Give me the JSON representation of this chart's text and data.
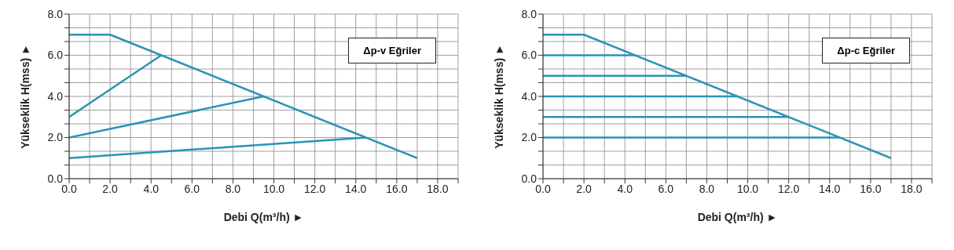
{
  "chart_data": [
    {
      "type": "line",
      "xlabel": "Debi Q(m³/h) ►",
      "ylabel": "Yükseklik H(mss) ►",
      "annotations": [
        "Δp-v Eğriler"
      ],
      "xlim": [
        0,
        19
      ],
      "ylim": [
        0,
        8
      ],
      "xticks": [
        {
          "value": 0,
          "label": "0.0"
        },
        {
          "value": 1,
          "label": null
        },
        {
          "value": 2,
          "label": "2.0"
        },
        {
          "value": 3,
          "label": null
        },
        {
          "value": 4,
          "label": "4.0"
        },
        {
          "value": 5,
          "label": null
        },
        {
          "value": 6,
          "label": "6.0"
        },
        {
          "value": 7,
          "label": null
        },
        {
          "value": 8,
          "label": "8.0"
        },
        {
          "value": 9,
          "label": null
        },
        {
          "value": 10,
          "label": "10.0"
        },
        {
          "value": 11,
          "label": null
        },
        {
          "value": 12,
          "label": "12.0"
        },
        {
          "value": 13,
          "label": null
        },
        {
          "value": 14,
          "label": "14.0"
        },
        {
          "value": 15,
          "label": null
        },
        {
          "value": 16,
          "label": "16.0"
        },
        {
          "value": 17,
          "label": null
        },
        {
          "value": 18,
          "label": "18.0"
        },
        {
          "value": 19,
          "label": null
        }
      ],
      "yticks": [
        {
          "value": 0,
          "label": "0.0"
        },
        {
          "value": 0.667,
          "label": null
        },
        {
          "value": 1.333,
          "label": null
        },
        {
          "value": 2,
          "label": "2.0"
        },
        {
          "value": 2.667,
          "label": null
        },
        {
          "value": 3.333,
          "label": null
        },
        {
          "value": 4,
          "label": "4.0"
        },
        {
          "value": 4.667,
          "label": null
        },
        {
          "value": 5.333,
          "label": null
        },
        {
          "value": 6,
          "label": "6.0"
        },
        {
          "value": 6.667,
          "label": null
        },
        {
          "value": 7.333,
          "label": null
        },
        {
          "value": 8,
          "label": "8.0"
        }
      ],
      "grid": true,
      "marker": "none",
      "line_style": "solid",
      "series": [
        {
          "color": "#2b93b3",
          "x": [
            0,
            2,
            17
          ],
          "values": [
            7,
            7,
            1
          ]
        },
        {
          "color": "#2b93b3",
          "x": [
            0,
            4.5
          ],
          "values": [
            3,
            6
          ]
        },
        {
          "color": "#2b93b3",
          "x": [
            0,
            9.5
          ],
          "values": [
            2,
            4
          ]
        },
        {
          "color": "#2b93b3",
          "x": [
            0,
            14.5
          ],
          "values": [
            1,
            2
          ]
        }
      ]
    },
    {
      "type": "line",
      "xlabel": "Debi Q(m³/h) ►",
      "ylabel": "Yükseklik H(mss) ►",
      "annotations": [
        "Δp-c Eğriler"
      ],
      "xlim": [
        0,
        19
      ],
      "ylim": [
        0,
        8
      ],
      "xticks": [
        {
          "value": 0,
          "label": "0.0"
        },
        {
          "value": 1,
          "label": null
        },
        {
          "value": 2,
          "label": "2.0"
        },
        {
          "value": 3,
          "label": null
        },
        {
          "value": 4,
          "label": "4.0"
        },
        {
          "value": 5,
          "label": null
        },
        {
          "value": 6,
          "label": "6.0"
        },
        {
          "value": 7,
          "label": null
        },
        {
          "value": 8,
          "label": "8.0"
        },
        {
          "value": 9,
          "label": null
        },
        {
          "value": 10,
          "label": "10.0"
        },
        {
          "value": 11,
          "label": null
        },
        {
          "value": 12,
          "label": "12.0"
        },
        {
          "value": 13,
          "label": null
        },
        {
          "value": 14,
          "label": "14.0"
        },
        {
          "value": 15,
          "label": null
        },
        {
          "value": 16,
          "label": "16.0"
        },
        {
          "value": 17,
          "label": null
        },
        {
          "value": 18,
          "label": "18.0"
        },
        {
          "value": 19,
          "label": null
        }
      ],
      "yticks": [
        {
          "value": 0,
          "label": "0.0"
        },
        {
          "value": 0.667,
          "label": null
        },
        {
          "value": 1.333,
          "label": null
        },
        {
          "value": 2,
          "label": "2.0"
        },
        {
          "value": 2.667,
          "label": null
        },
        {
          "value": 3.333,
          "label": null
        },
        {
          "value": 4,
          "label": "4.0"
        },
        {
          "value": 4.667,
          "label": null
        },
        {
          "value": 5.333,
          "label": null
        },
        {
          "value": 6,
          "label": "6.0"
        },
        {
          "value": 6.667,
          "label": null
        },
        {
          "value": 7.333,
          "label": null
        },
        {
          "value": 8,
          "label": "8.0"
        }
      ],
      "grid": true,
      "marker": "none",
      "line_style": "solid",
      "series": [
        {
          "color": "#2b93b3",
          "x": [
            0,
            2,
            17
          ],
          "values": [
            7,
            7,
            1
          ]
        },
        {
          "color": "#2b93b3",
          "x": [
            0,
            4.5
          ],
          "values": [
            6,
            6
          ]
        },
        {
          "color": "#2b93b3",
          "x": [
            0,
            7
          ],
          "values": [
            5,
            5
          ]
        },
        {
          "color": "#2b93b3",
          "x": [
            0,
            9.5
          ],
          "values": [
            4,
            4
          ]
        },
        {
          "color": "#2b93b3",
          "x": [
            0,
            12
          ],
          "values": [
            3,
            3
          ]
        },
        {
          "color": "#2b93b3",
          "x": [
            0,
            14.5
          ],
          "values": [
            2,
            2
          ]
        }
      ]
    }
  ]
}
